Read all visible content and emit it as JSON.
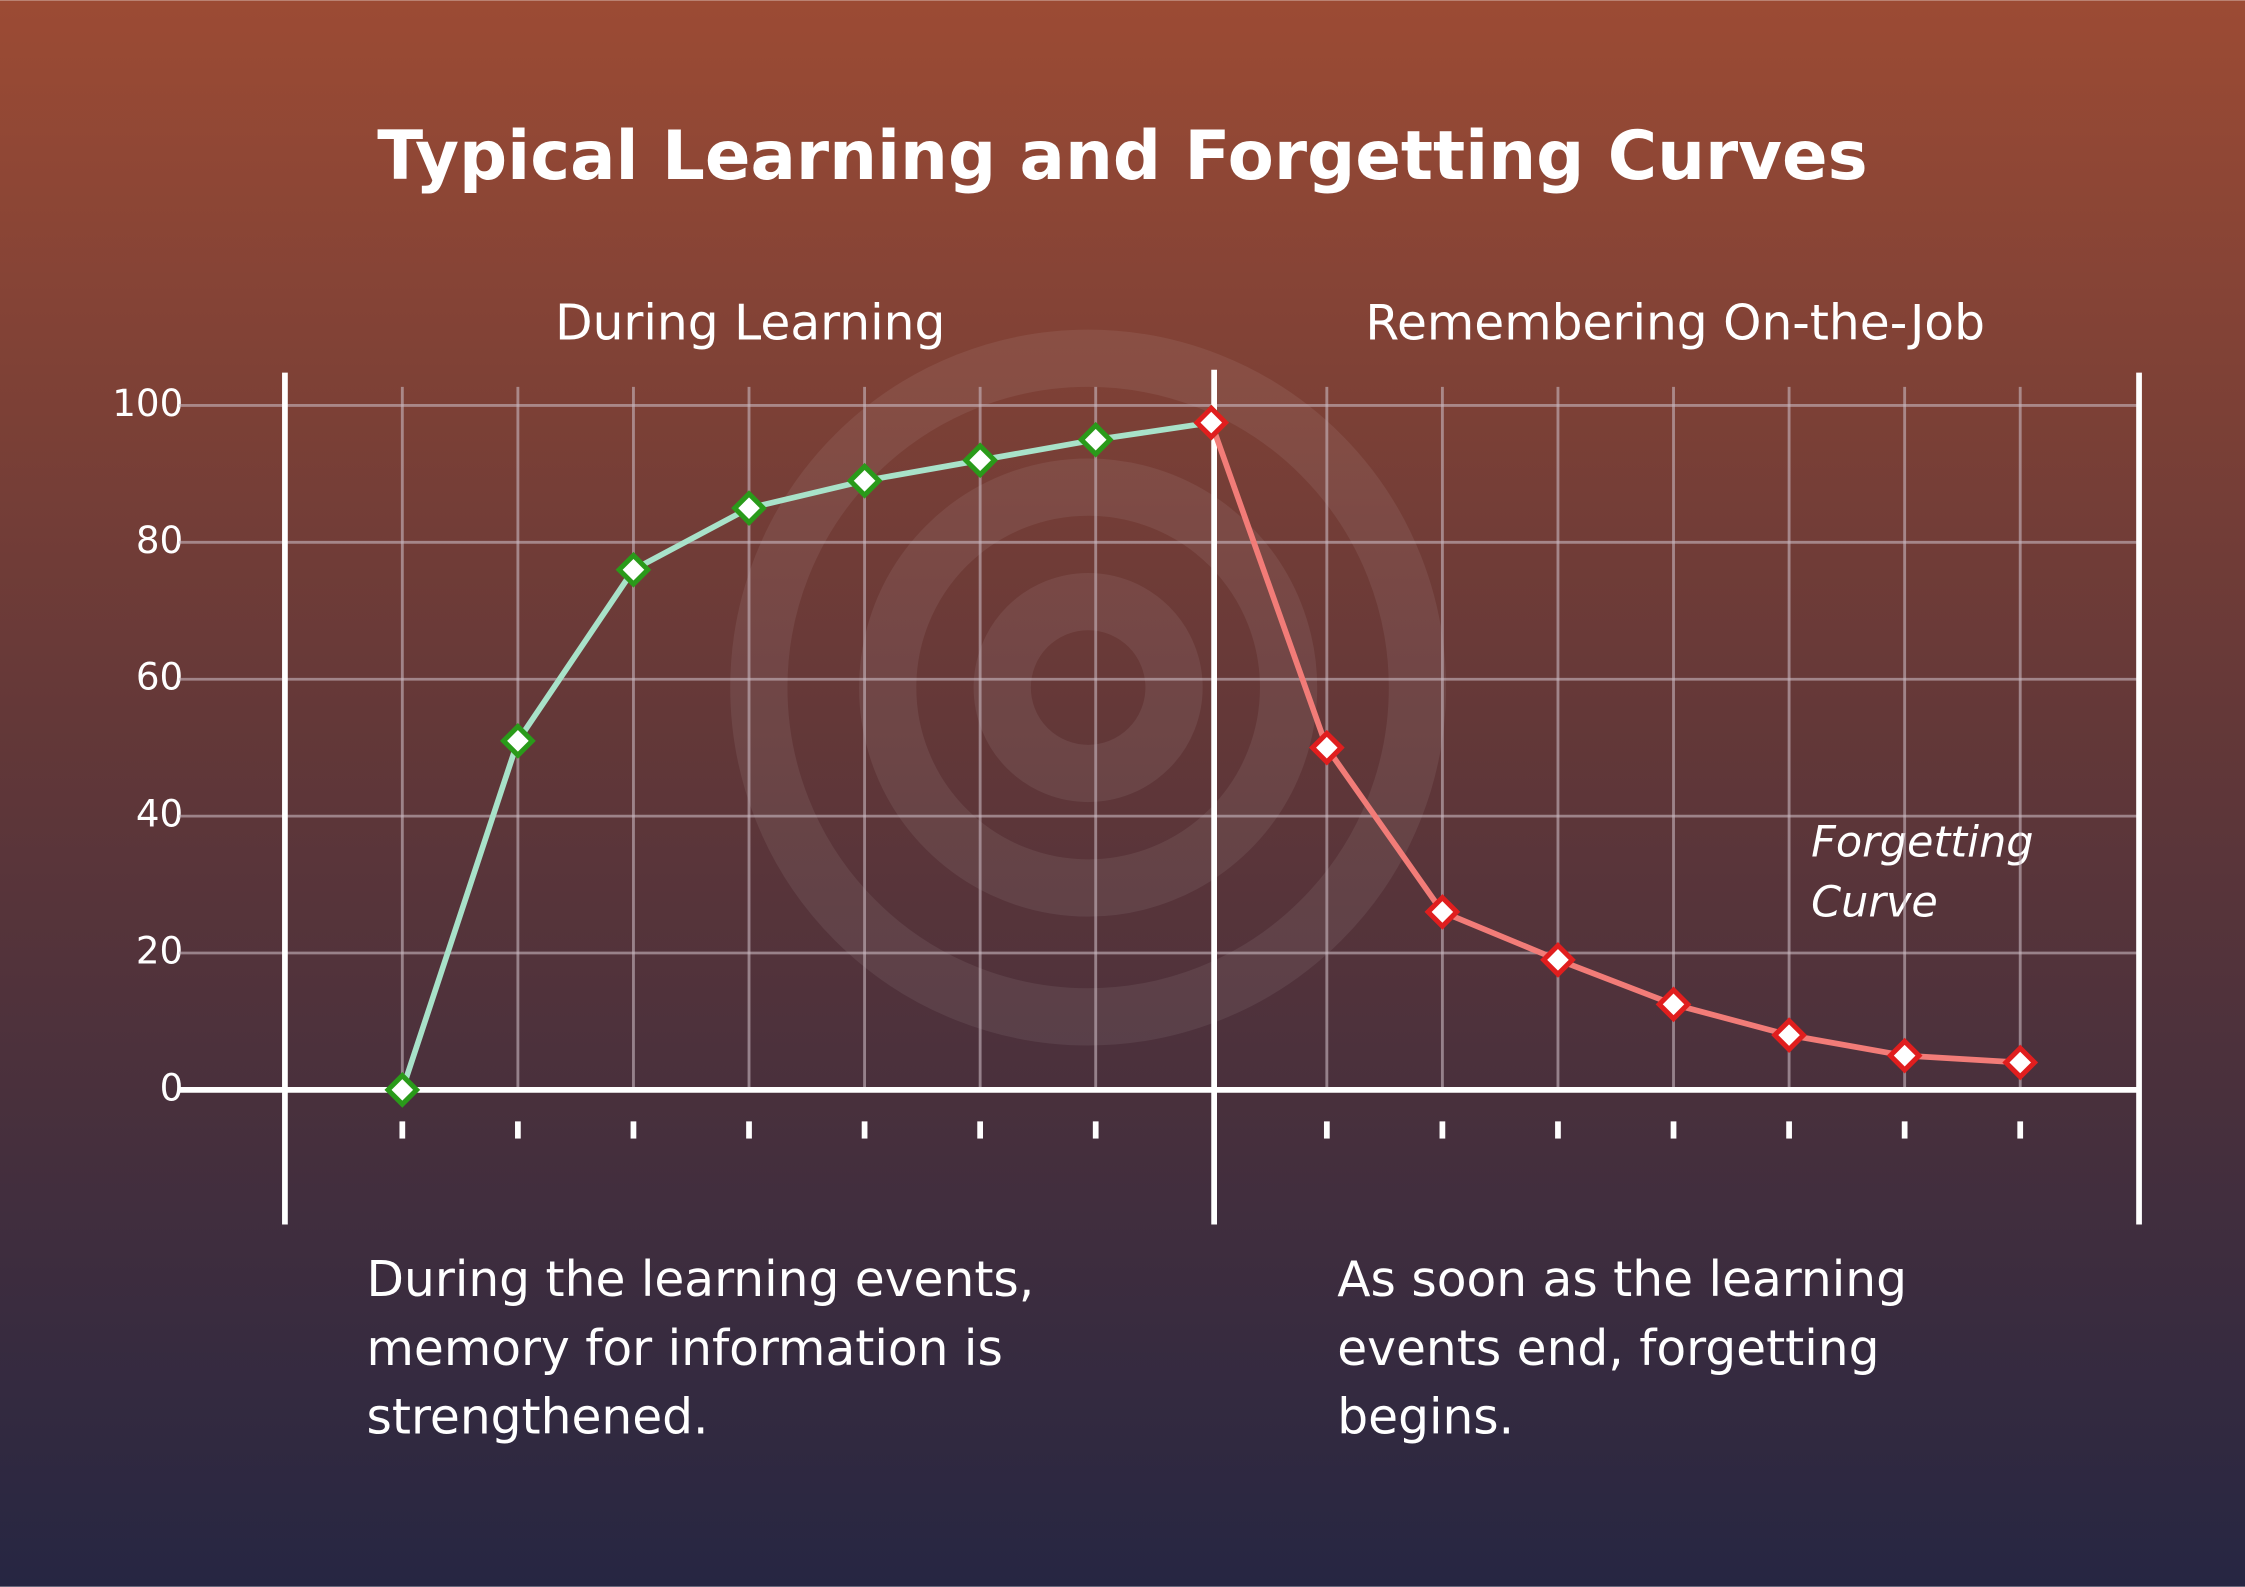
{
  "chart_data": {
    "type": "line",
    "title": "Typical Learning and Forgetting Curves",
    "annotations": {
      "left_header": "During Learning",
      "right_header": "Remembering On-the-Job",
      "curve_label": [
        "Forgetting",
        "Curve"
      ],
      "left_caption": [
        "During the learning events,",
        "memory for information is",
        "strengthened."
      ],
      "right_caption": [
        "As soon as the learning",
        "events end, forgetting",
        "begins."
      ]
    },
    "categories": [
      null,
      null,
      null,
      null,
      null,
      null,
      null,
      null,
      null,
      null,
      null,
      null,
      null,
      null,
      null
    ],
    "series": [
      {
        "color": "#a8e2c9",
        "marker_color": "#2a9a1a",
        "values": [
          0,
          51,
          76,
          85,
          89,
          92,
          95,
          97.5,
          null,
          null,
          null,
          null,
          null,
          null,
          null
        ]
      },
      {
        "color": "#f27c78",
        "marker_color": "#e01e1e",
        "values": [
          null,
          null,
          null,
          null,
          null,
          null,
          null,
          97.5,
          50,
          26,
          19,
          12.5,
          8,
          5,
          4
        ]
      }
    ],
    "ylim": [
      0,
      100
    ],
    "yticks": [
      0,
      20,
      40,
      60,
      80,
      100
    ],
    "grid": true
  }
}
